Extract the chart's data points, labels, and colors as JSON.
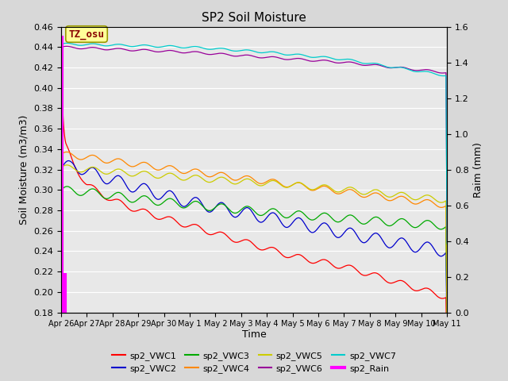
{
  "title": "SP2 Soil Moisture",
  "xlabel": "Time",
  "ylabel_left": "Soil Moisture (m3/m3)",
  "ylabel_right": "Raim (mm)",
  "ylim_left": [
    0.18,
    0.46
  ],
  "ylim_right": [
    0.0,
    1.6
  ],
  "yticks_left": [
    0.18,
    0.2,
    0.22,
    0.24,
    0.26,
    0.28,
    0.3,
    0.32,
    0.34,
    0.36,
    0.38,
    0.4,
    0.42,
    0.44,
    0.46
  ],
  "yticks_right": [
    0.0,
    0.2,
    0.4,
    0.6,
    0.8,
    1.0,
    1.2,
    1.4,
    1.6
  ],
  "xtick_labels": [
    "Apr 26",
    "Apr 27",
    "Apr 28",
    "Apr 29",
    "Apr 30",
    "May 1",
    "May 2",
    "May 3",
    "May 4",
    "May 5",
    "May 6",
    "May 7",
    "May 8",
    "May 9",
    "May 10",
    "May 11"
  ],
  "background_color": "#e8e8e8",
  "grid_color": "#ffffff",
  "series_colors": {
    "sp2_VWC1": "#ff0000",
    "sp2_VWC2": "#0000cc",
    "sp2_VWC3": "#00aa00",
    "sp2_VWC4": "#ff8800",
    "sp2_VWC5": "#cccc00",
    "sp2_VWC6": "#990099",
    "sp2_VWC7": "#00cccc",
    "sp2_Rain": "#ff00ff"
  },
  "annotation_text": "TZ_osu",
  "annotation_color": "#880000",
  "annotation_bg": "#ffff99",
  "annotation_border": "#999900",
  "fig_width": 6.4,
  "fig_height": 4.8,
  "dpi": 100
}
